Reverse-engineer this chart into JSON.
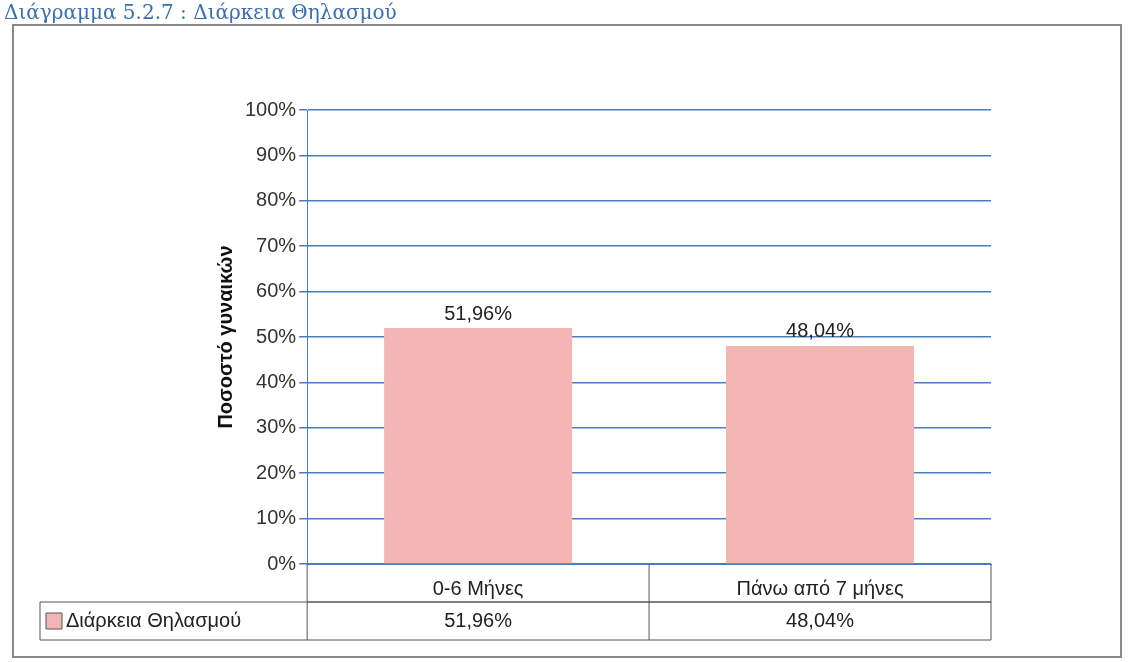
{
  "chart_data": {
    "type": "bar",
    "title": "Διάγραμμα 5.2.7 : Διάρκεια Θηλασμού",
    "ylabel": "Ποσοστό γυναικών",
    "categories": [
      "0-6 Μήνες",
      "Πάνω από 7 μήνες"
    ],
    "series": [
      {
        "name": "Διάρκεια Θηλασμού",
        "color": "#f4b6b4",
        "values": [
          51.96,
          48.04
        ],
        "value_labels": [
          "51,96%",
          "48,04%"
        ]
      }
    ],
    "ylim": [
      0,
      100
    ],
    "yticks": [
      {
        "value": 0,
        "label": "0%"
      },
      {
        "value": 10,
        "label": "10%"
      },
      {
        "value": 20,
        "label": "20%"
      },
      {
        "value": 30,
        "label": "30%"
      },
      {
        "value": 40,
        "label": "40%"
      },
      {
        "value": 50,
        "label": "50%"
      },
      {
        "value": 60,
        "label": "60%"
      },
      {
        "value": 70,
        "label": "70%"
      },
      {
        "value": 80,
        "label": "80%"
      },
      {
        "value": 90,
        "label": "90%"
      },
      {
        "value": 100,
        "label": "100%"
      }
    ],
    "grid": "y",
    "legend": "bottom"
  }
}
